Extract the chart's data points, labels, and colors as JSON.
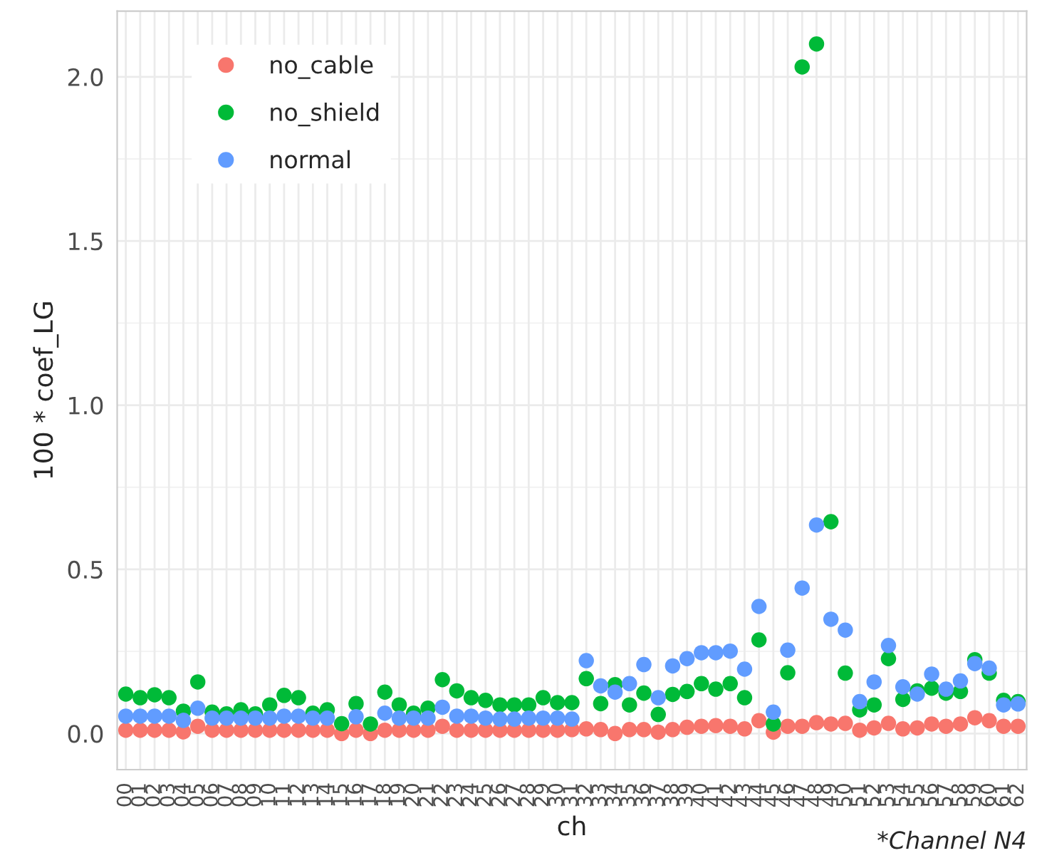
{
  "chart_data": {
    "type": "scatter",
    "xlabel": "ch",
    "ylabel": "100 * coef_LG",
    "categories": [
      "00",
      "01",
      "02",
      "03",
      "04",
      "05",
      "06",
      "07",
      "08",
      "09",
      "10",
      "11",
      "12",
      "13",
      "14",
      "15",
      "16",
      "17",
      "18",
      "19",
      "20",
      "21",
      "22",
      "23",
      "24",
      "25",
      "26",
      "27",
      "28",
      "29",
      "30",
      "31",
      "32",
      "33",
      "34",
      "35",
      "36",
      "37",
      "38",
      "39",
      "40",
      "41",
      "42",
      "43",
      "44",
      "45",
      "46",
      "47",
      "48",
      "49",
      "50",
      "51",
      "52",
      "53",
      "54",
      "55",
      "56",
      "57",
      "58",
      "59",
      "60",
      "61",
      "62"
    ],
    "series": [
      {
        "name": "no_cable",
        "color": "#f8766d",
        "values": [
          0.01,
          0.01,
          0.01,
          0.01,
          0.005,
          0.022,
          0.01,
          0.01,
          0.01,
          0.01,
          0.01,
          0.01,
          0.01,
          0.01,
          0.01,
          0.0,
          0.01,
          0.0,
          0.01,
          0.01,
          0.01,
          0.01,
          0.022,
          0.01,
          0.01,
          0.01,
          0.01,
          0.01,
          0.01,
          0.01,
          0.01,
          0.012,
          0.014,
          0.012,
          0.0,
          0.012,
          0.012,
          0.004,
          0.012,
          0.019,
          0.022,
          0.024,
          0.022,
          0.014,
          0.039,
          0.004,
          0.022,
          0.022,
          0.033,
          0.029,
          0.031,
          0.01,
          0.017,
          0.031,
          0.014,
          0.017,
          0.029,
          0.022,
          0.029,
          0.048,
          0.039,
          0.022,
          0.022
        ]
      },
      {
        "name": "no_shield",
        "color": "#00ba38",
        "values": [
          0.12,
          0.109,
          0.118,
          0.109,
          0.068,
          0.157,
          0.065,
          0.06,
          0.072,
          0.06,
          0.087,
          0.116,
          0.109,
          0.062,
          0.072,
          0.03,
          0.091,
          0.029,
          0.126,
          0.087,
          0.062,
          0.077,
          0.164,
          0.13,
          0.109,
          0.101,
          0.087,
          0.087,
          0.087,
          0.109,
          0.094,
          0.094,
          0.167,
          0.091,
          0.149,
          0.087,
          0.123,
          0.058,
          0.119,
          0.128,
          0.152,
          0.135,
          0.152,
          0.109,
          0.285,
          0.029,
          0.185,
          2.03,
          2.1,
          0.645,
          0.184,
          0.072,
          0.087,
          0.228,
          0.104,
          0.13,
          0.138,
          0.123,
          0.128,
          0.225,
          0.184,
          0.101,
          0.097
        ]
      },
      {
        "name": "normal",
        "color": "#619cff",
        "values": [
          0.053,
          0.053,
          0.053,
          0.053,
          0.04,
          0.077,
          0.047,
          0.047,
          0.047,
          0.047,
          0.047,
          0.053,
          0.053,
          0.047,
          0.047,
          null,
          0.051,
          null,
          0.062,
          0.047,
          0.047,
          0.047,
          0.08,
          0.053,
          0.053,
          0.047,
          0.044,
          0.044,
          0.047,
          0.047,
          0.047,
          0.044,
          0.222,
          0.145,
          0.126,
          0.152,
          0.21,
          0.109,
          0.206,
          0.228,
          0.246,
          0.246,
          0.251,
          0.196,
          0.387,
          0.065,
          0.254,
          0.443,
          0.635,
          0.348,
          0.315,
          0.097,
          0.157,
          0.268,
          0.142,
          0.12,
          0.181,
          0.135,
          0.16,
          0.213,
          0.199,
          0.087,
          0.09
        ]
      }
    ],
    "ylim": [
      -0.11,
      2.2
    ],
    "yticks": [
      {
        "value": 0,
        "label": "0.0"
      },
      {
        "value": 0.5,
        "label": "0.5"
      },
      {
        "value": 1,
        "label": "1.0"
      },
      {
        "value": 1.5,
        "label": "1.5"
      },
      {
        "value": 2,
        "label": "2.0"
      }
    ],
    "grid": true,
    "legend": "top left",
    "marker": "circle",
    "annotations": [
      "*Channel N4"
    ]
  }
}
